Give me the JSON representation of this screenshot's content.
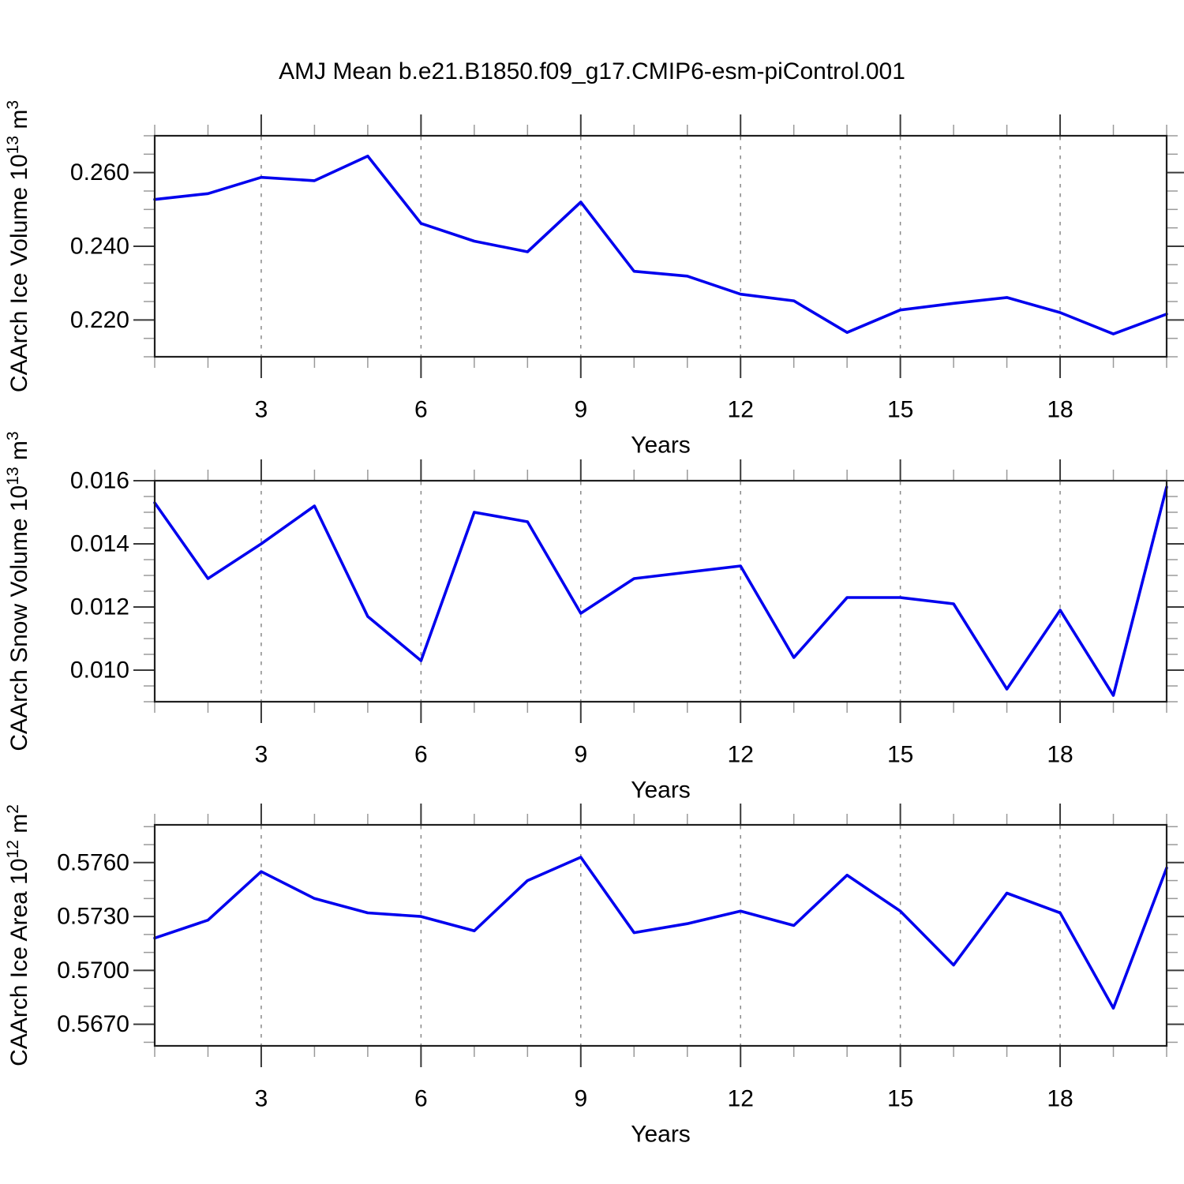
{
  "title": "AMJ Mean b.e21.B1850.f09_g17.CMIP6-esm-piControl.001",
  "colors": {
    "line": "#0000ee",
    "grid": "#888888",
    "spine": "#1f1f1f",
    "major_tick": "#3a3a3a",
    "minor_tick": "#9a9a9a",
    "text": "#000000",
    "background": "#ffffff"
  },
  "x_axis": {
    "label": "Years",
    "range": [
      1,
      20
    ],
    "major_ticks": [
      3,
      6,
      9,
      12,
      15,
      18
    ],
    "major_tick_labels": [
      "3",
      "6",
      "9",
      "12",
      "15",
      "18"
    ],
    "minor_step": 1,
    "gridlines_at": [
      3,
      6,
      9,
      12,
      15,
      18
    ]
  },
  "chart_data": [
    {
      "type": "line",
      "id": "ice-volume",
      "ylabel_text": "CAArch Ice Volume 10^13 m^3",
      "ylabel_parts": [
        {
          "t": "CAArch Ice Volume 10",
          "sup": false
        },
        {
          "t": "13",
          "sup": true
        },
        {
          "t": " m",
          "sup": false
        },
        {
          "t": "3",
          "sup": true
        }
      ],
      "xlabel": "Years",
      "x": [
        1,
        2,
        3,
        4,
        5,
        6,
        7,
        8,
        9,
        10,
        11,
        12,
        13,
        14,
        15,
        16,
        17,
        18,
        19,
        20
      ],
      "values": [
        0.2527,
        0.2543,
        0.2587,
        0.2578,
        0.2645,
        0.2462,
        0.2414,
        0.2385,
        0.252,
        0.2332,
        0.2319,
        0.227,
        0.2252,
        0.2166,
        0.2227,
        0.2245,
        0.2261,
        0.222,
        0.2162,
        0.2216
      ],
      "ylim": [
        0.21,
        0.27
      ],
      "ytick_labels": [
        {
          "value": 0.26,
          "label": "0.260"
        },
        {
          "value": 0.24,
          "label": "0.240"
        },
        {
          "value": 0.22,
          "label": "0.220"
        }
      ],
      "y_minor_step": 0.005,
      "grid": true,
      "legend": "none"
    },
    {
      "type": "line",
      "id": "snow-volume",
      "ylabel_text": "CAArch Snow Volume 10^13 m^3",
      "ylabel_parts": [
        {
          "t": "CAArch Snow Volume 10",
          "sup": false
        },
        {
          "t": "13",
          "sup": true
        },
        {
          "t": " m",
          "sup": false
        },
        {
          "t": "3",
          "sup": true
        }
      ],
      "xlabel": "Years",
      "x": [
        1,
        2,
        3,
        4,
        5,
        6,
        7,
        8,
        9,
        10,
        11,
        12,
        13,
        14,
        15,
        16,
        17,
        18,
        19,
        20
      ],
      "values": [
        0.0153,
        0.0129,
        0.014,
        0.0152,
        0.0117,
        0.0103,
        0.015,
        0.0147,
        0.0118,
        0.0129,
        0.0131,
        0.0133,
        0.0104,
        0.0123,
        0.0123,
        0.0121,
        0.0094,
        0.0119,
        0.0092,
        0.0158
      ],
      "ylim": [
        0.009,
        0.016
      ],
      "ytick_labels": [
        {
          "value": 0.016,
          "label": "0.016"
        },
        {
          "value": 0.014,
          "label": "0.014"
        },
        {
          "value": 0.012,
          "label": "0.012"
        },
        {
          "value": 0.01,
          "label": "0.010"
        }
      ],
      "y_minor_step": 0.0005,
      "grid": true,
      "legend": "none"
    },
    {
      "type": "line",
      "id": "ice-area",
      "ylabel_text": "CAArch Ice Area 10^12 m^2",
      "ylabel_parts": [
        {
          "t": "CAArch Ice Area 10",
          "sup": false
        },
        {
          "t": "12",
          "sup": true
        },
        {
          "t": " m",
          "sup": false
        },
        {
          "t": "2",
          "sup": true
        }
      ],
      "xlabel": "Years",
      "x": [
        1,
        2,
        3,
        4,
        5,
        6,
        7,
        8,
        9,
        10,
        11,
        12,
        13,
        14,
        15,
        16,
        17,
        18,
        19,
        20
      ],
      "values": [
        0.5718,
        0.5728,
        0.5755,
        0.574,
        0.5732,
        0.573,
        0.5722,
        0.575,
        0.5763,
        0.5721,
        0.5726,
        0.5733,
        0.5725,
        0.5753,
        0.5733,
        0.5703,
        0.5743,
        0.5732,
        0.5679,
        0.5757
      ],
      "ylim": [
        0.5658,
        0.5781
      ],
      "ytick_labels": [
        {
          "value": 0.576,
          "label": "0.5760"
        },
        {
          "value": 0.573,
          "label": "0.5730"
        },
        {
          "value": 0.57,
          "label": "0.5700"
        },
        {
          "value": 0.567,
          "label": "0.5670"
        }
      ],
      "y_minor_step": 0.001,
      "grid": true,
      "legend": "none"
    }
  ]
}
